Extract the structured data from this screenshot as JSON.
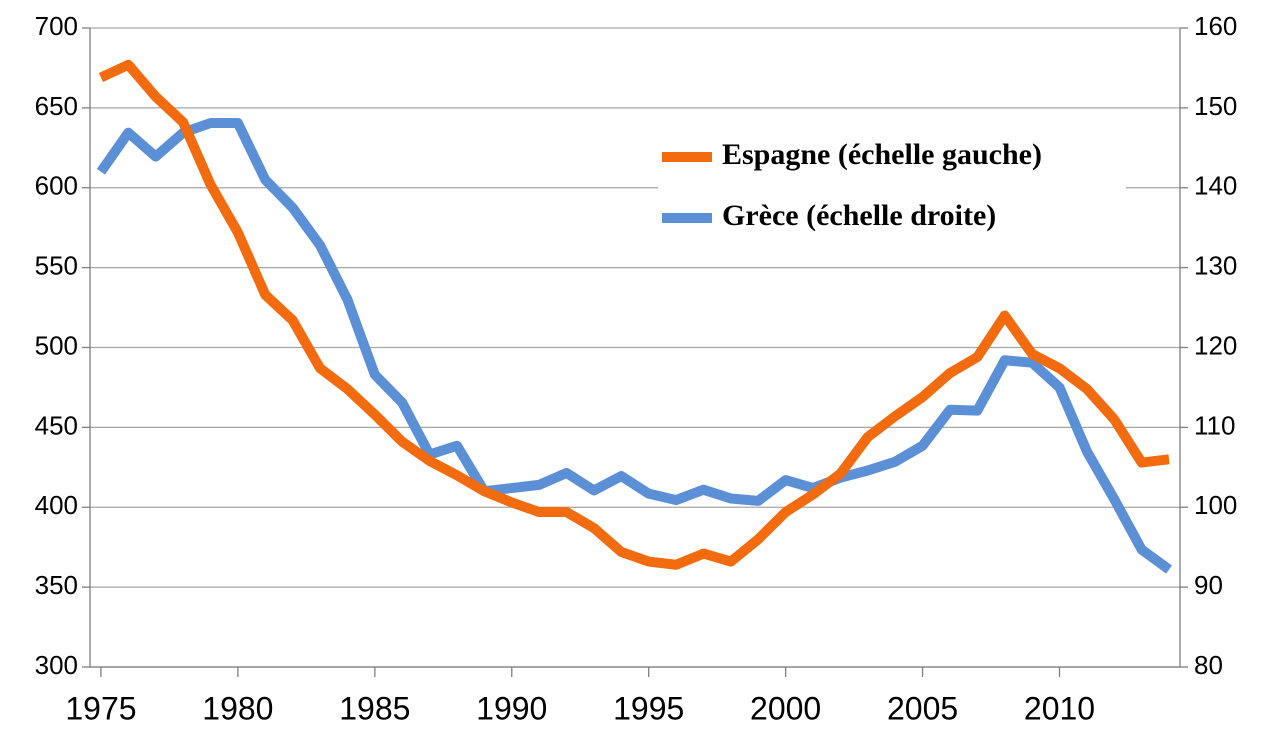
{
  "chart_data": {
    "type": "line",
    "x": [
      1975,
      1976,
      1977,
      1978,
      1979,
      1980,
      1981,
      1982,
      1983,
      1984,
      1985,
      1986,
      1987,
      1988,
      1989,
      1990,
      1991,
      1992,
      1993,
      1994,
      1995,
      1996,
      1997,
      1998,
      1999,
      2000,
      2001,
      2002,
      2003,
      2004,
      2005,
      2006,
      2007,
      2008,
      2009,
      2010,
      2011,
      2012,
      2013,
      2014
    ],
    "series": [
      {
        "name": "Espagne (échelle gauche)",
        "color": "#f26b0f",
        "values": [
          669,
          677,
          657,
          641,
          602,
          572,
          533,
          517,
          487,
          474,
          458,
          441,
          429,
          420,
          410,
          403,
          397,
          397,
          387,
          372,
          366,
          364,
          371,
          366,
          380,
          397,
          408,
          421,
          444,
          457,
          469,
          484,
          494,
          520,
          496,
          487,
          474,
          455,
          428,
          430
        ]
      },
      {
        "name": "Grèce (échelle droite)",
        "color": "#5b8fd6",
        "axis": "y2",
        "values": [
          142,
          146.9,
          143.9,
          146.9,
          148.1,
          148.1,
          141,
          137.5,
          132.8,
          126,
          116.6,
          113.1,
          106.6,
          107.7,
          102,
          102.4,
          102.8,
          104.3,
          102.1,
          103.9,
          101.7,
          100.9,
          102.2,
          101.1,
          100.8,
          103.4,
          102.4,
          103.7,
          104.6,
          105.7,
          107.7,
          112.2,
          112.1,
          118.4,
          118.1,
          115,
          107,
          101,
          94.7,
          92.2
        ]
      }
    ],
    "xlim": [
      1974.6,
      2014.4
    ],
    "xticks": [
      1975,
      1980,
      1985,
      1990,
      1995,
      2000,
      2005,
      2010
    ],
    "ylim": [
      300,
      700
    ],
    "yticks": [
      300,
      350,
      400,
      450,
      500,
      550,
      600,
      650,
      700
    ],
    "y2lim": [
      80,
      160
    ],
    "y2ticks": [
      80,
      90,
      100,
      110,
      120,
      130,
      140,
      150,
      160
    ],
    "grid": true,
    "legend": "top-right"
  }
}
